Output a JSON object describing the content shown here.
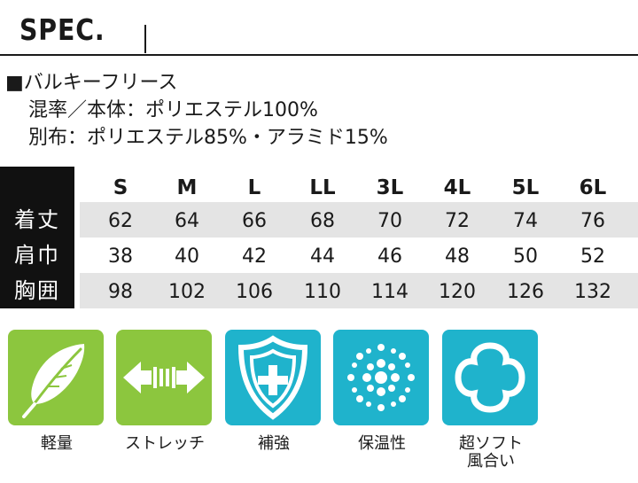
{
  "header": {
    "title": "SPEC."
  },
  "spec": {
    "line1": "■バルキーフリース",
    "line2": "混率／本体：ポリエステル100%",
    "line3": "別布：ポリエステル85%・アラミド15%"
  },
  "size_table": {
    "columns": [
      "S",
      "M",
      "L",
      "LL",
      "3L",
      "4L",
      "5L",
      "6L"
    ],
    "rows": [
      {
        "label": "着丈",
        "values": [
          "62",
          "64",
          "66",
          "68",
          "70",
          "72",
          "74",
          "76"
        ]
      },
      {
        "label": "肩巾",
        "values": [
          "38",
          "40",
          "42",
          "44",
          "46",
          "48",
          "50",
          "52"
        ]
      },
      {
        "label": "胸囲",
        "values": [
          "98",
          "102",
          "106",
          "110",
          "114",
          "120",
          "126",
          "132"
        ]
      }
    ]
  },
  "features": [
    {
      "icon": "feather-icon",
      "label": "軽量",
      "color": "#8cc63e"
    },
    {
      "icon": "stretch-arrows-icon",
      "label": "ストレッチ",
      "color": "#8cc63e"
    },
    {
      "icon": "shield-icon",
      "label": "補強",
      "color": "#1fb3cc"
    },
    {
      "icon": "warmth-dots-icon",
      "label": "保温性",
      "color": "#1fb3cc"
    },
    {
      "icon": "soft-clover-icon",
      "label": "超ソフト\n風合い",
      "color": "#1fb3cc"
    }
  ]
}
